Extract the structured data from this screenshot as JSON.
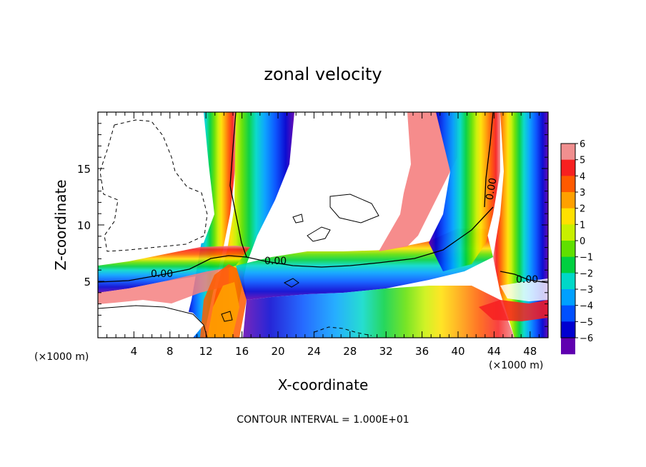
{
  "chart_data": {
    "type": "heatmap",
    "title": "zonal velocity",
    "xlabel": "X-coordinate",
    "ylabel": "Z-coordinate",
    "x_unit": "(×1000 m)",
    "x_unit_right": "(×1000 m)",
    "xlim": [
      0,
      50
    ],
    "ylim": [
      0,
      20
    ],
    "xticks": [
      4,
      8,
      12,
      16,
      20,
      24,
      28,
      32,
      36,
      40,
      44,
      48
    ],
    "yticks": [
      5,
      10,
      15
    ],
    "colorbar": {
      "ticks": [
        "6",
        "5",
        "4",
        "3",
        "2",
        "1",
        "0",
        "−1",
        "−2",
        "−3",
        "−4",
        "−5",
        "−6"
      ],
      "colors": [
        "#f08f8f",
        "#f72020",
        "#ff5a00",
        "#ffa000",
        "#ffe000",
        "#c8f000",
        "#60e000",
        "#00d040",
        "#00d8c8",
        "#00a0ff",
        "#0050ff",
        "#0000d0",
        "#6000b0"
      ]
    },
    "contour_labels": [
      "0.00",
      "0.00",
      "0.00",
      "0.00"
    ],
    "footer": "CONTOUR INTERVAL = 1.000E+01"
  }
}
